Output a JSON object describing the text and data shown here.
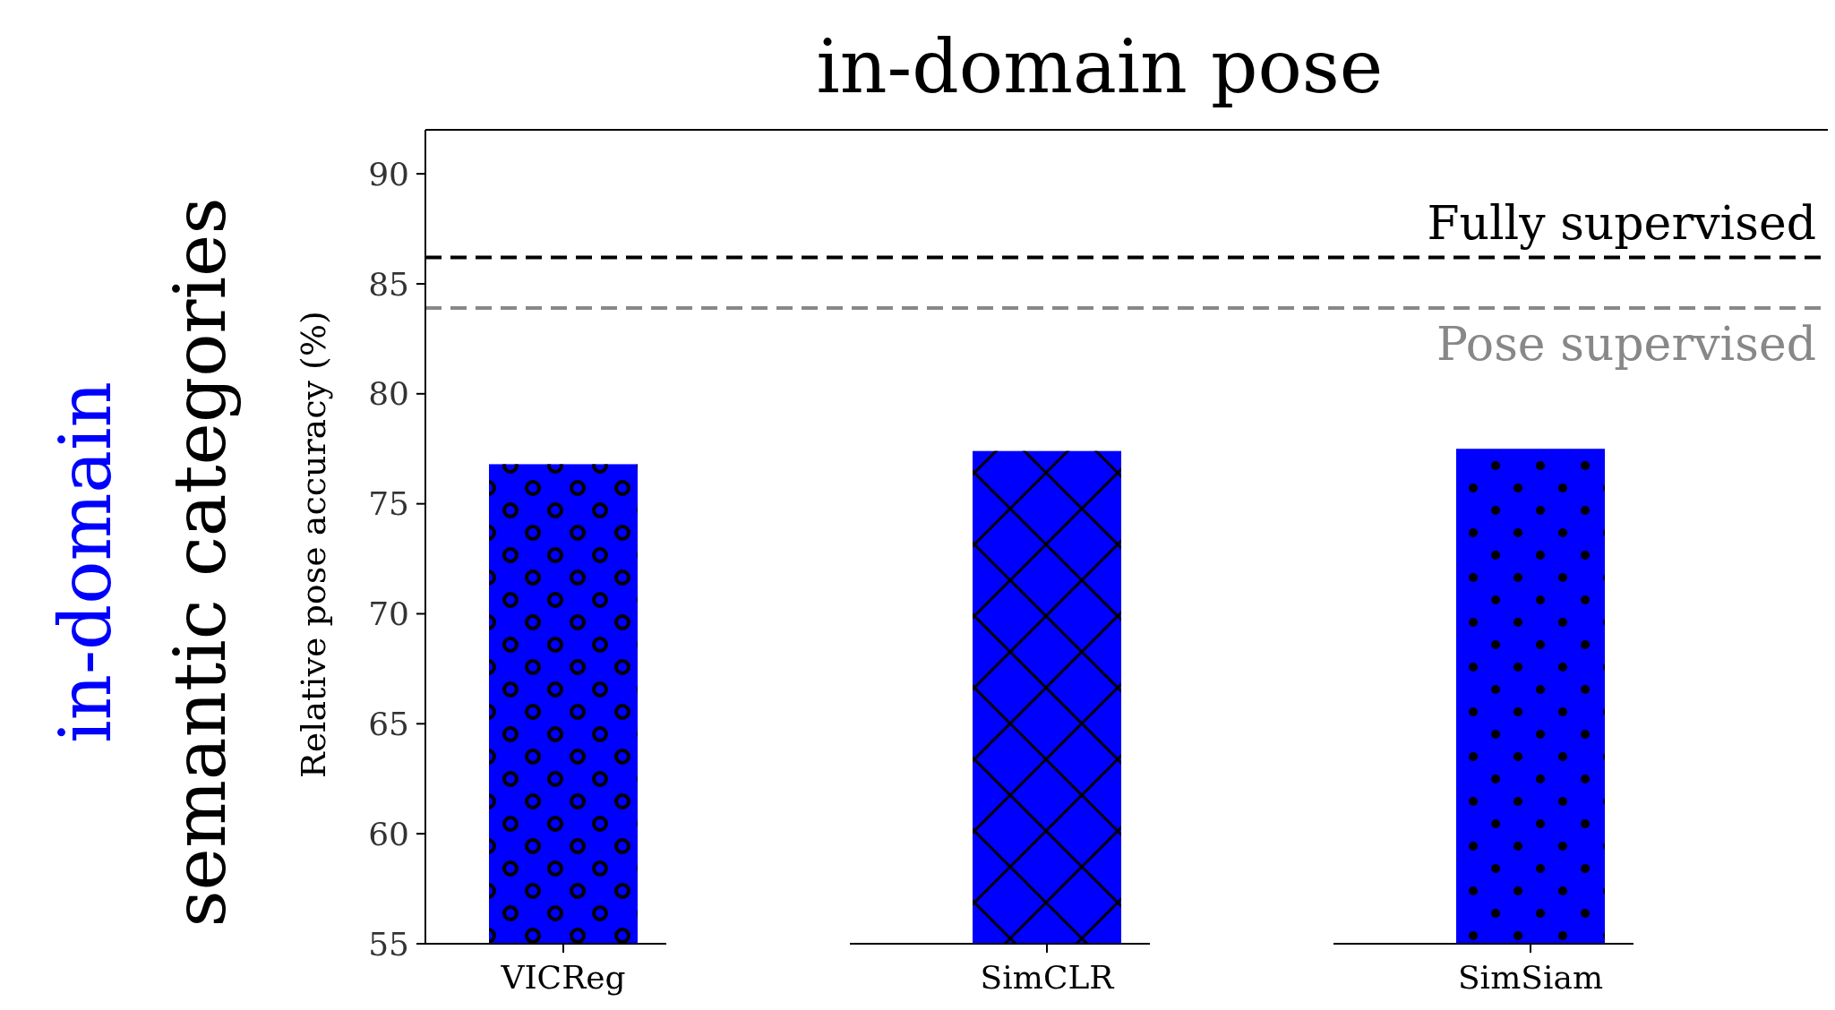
{
  "chart_data": {
    "type": "bar",
    "title": "in-domain pose",
    "ylabel": "Relative pose accuracy (%)",
    "categories": [
      "VICReg",
      "SimCLR",
      "SimSiam"
    ],
    "values": [
      76.8,
      77.4,
      77.5
    ],
    "color": "#0000ff",
    "ylim": [
      55,
      92
    ],
    "yticks": [
      55,
      60,
      65,
      70,
      75,
      80,
      85,
      90
    ],
    "ref_lines": [
      {
        "axis": "y",
        "value": 86.2,
        "label": "Fully supervised",
        "color": "#000000",
        "line_style": "dashed"
      },
      {
        "axis": "y",
        "value": 83.9,
        "label": "Pose supervised",
        "color": "#888888",
        "line_style": "dashed"
      }
    ],
    "annotations": [
      "in-domain",
      "semantic categories"
    ]
  }
}
